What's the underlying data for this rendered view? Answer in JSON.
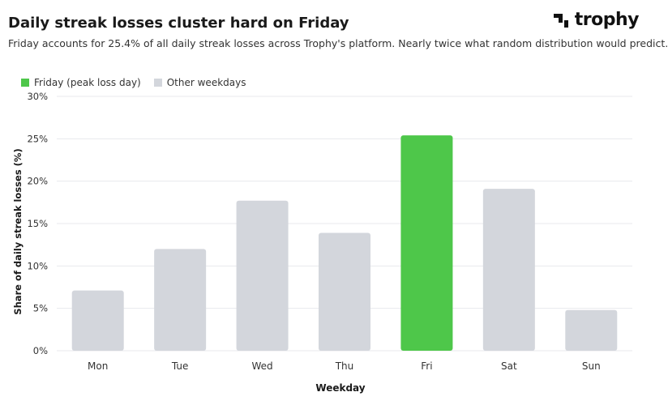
{
  "header": {
    "title": "Daily streak losses cluster hard on Friday",
    "subtitle": "Friday accounts for 25.4% of all daily streak losses across Trophy's platform. Nearly twice what random distribution would predict.",
    "logo_text": "trophy"
  },
  "colors": {
    "highlight": "#4ec74a",
    "other": "#d3d6dc",
    "grid": "#e8eaed",
    "text": "#333333"
  },
  "legend": {
    "highlight_label": "Friday (peak loss day)",
    "other_label": "Other weekdays"
  },
  "chart_data": {
    "type": "bar",
    "categories": [
      "Mon",
      "Tue",
      "Wed",
      "Thu",
      "Fri",
      "Sat",
      "Sun"
    ],
    "values": [
      7.1,
      12.0,
      17.7,
      13.9,
      25.4,
      19.1,
      4.8
    ],
    "highlight": [
      "Fri"
    ],
    "xlabel": "Weekday",
    "ylabel": "Share of daily streak losses (%)",
    "ylim": [
      0,
      30
    ],
    "yticks": [
      0,
      5,
      10,
      15,
      20,
      25,
      30
    ],
    "ytick_labels": [
      "0%",
      "5%",
      "10%",
      "15%",
      "20%",
      "25%",
      "30%"
    ],
    "grid": true,
    "legend_position": "top-left"
  }
}
